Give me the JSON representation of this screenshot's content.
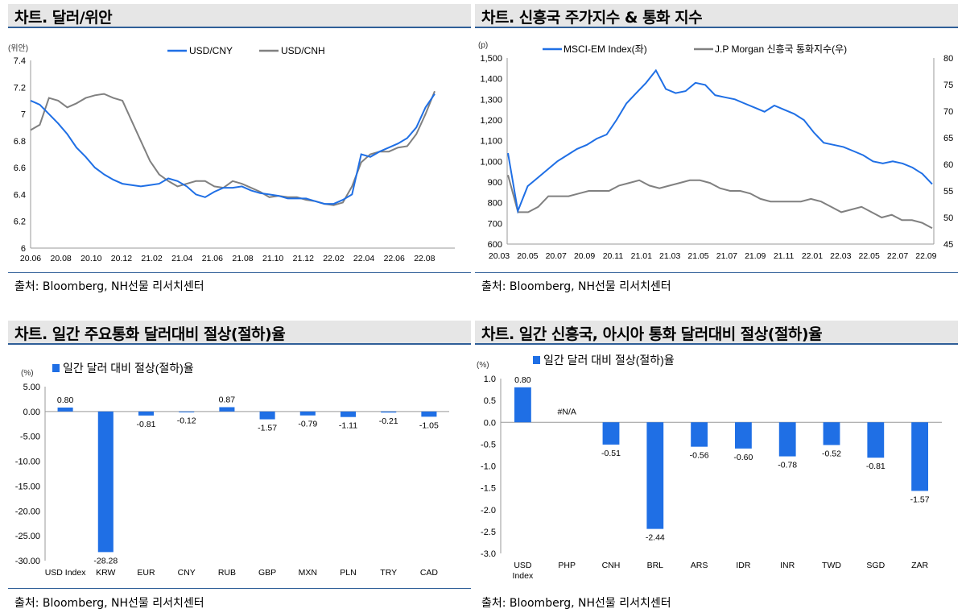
{
  "source_note": "출처: Bloomberg, NH선물 리서치센터",
  "charts": [
    {
      "title": "차트. 달러/위안",
      "unit": "(위안)",
      "type": "line",
      "series": [
        {
          "name": "USD/CNY",
          "color": "#1f6fe5"
        },
        {
          "name": "USD/CNH",
          "color": "#808080"
        }
      ],
      "xticks": [
        "20.06",
        "20.08",
        "20.10",
        "20.12",
        "21.02",
        "21.04",
        "21.06",
        "21.08",
        "21.10",
        "21.12",
        "22.02",
        "22.04",
        "22.06",
        "22.08"
      ],
      "yticks": [
        "6",
        "6.2",
        "6.4",
        "6.6",
        "6.8",
        "7",
        "7.2",
        "7.4"
      ],
      "ylim": [
        6,
        7.4
      ],
      "cny": [
        7.1,
        7.07,
        7.0,
        6.93,
        6.85,
        6.75,
        6.68,
        6.6,
        6.55,
        6.51,
        6.48,
        6.47,
        6.46,
        6.47,
        6.48,
        6.52,
        6.5,
        6.46,
        6.4,
        6.38,
        6.42,
        6.45,
        6.45,
        6.46,
        6.43,
        6.41,
        6.4,
        6.39,
        6.37,
        6.37,
        6.37,
        6.35,
        6.33,
        6.33,
        6.36,
        6.4,
        6.7,
        6.68,
        6.72,
        6.75,
        6.78,
        6.82,
        6.9,
        7.05,
        7.15
      ],
      "cnh": [
        6.88,
        6.92,
        7.12,
        7.1,
        7.05,
        7.08,
        7.12,
        7.14,
        7.15,
        7.12,
        7.1,
        6.95,
        6.8,
        6.65,
        6.55,
        6.5,
        6.46,
        6.48,
        6.5,
        6.5,
        6.46,
        6.45,
        6.5,
        6.48,
        6.45,
        6.42,
        6.38,
        6.39,
        6.38,
        6.38,
        6.36,
        6.35,
        6.33,
        6.32,
        6.34,
        6.46,
        6.64,
        6.7,
        6.72,
        6.72,
        6.75,
        6.76,
        6.85,
        7.0,
        7.17
      ]
    },
    {
      "title": "차트. 신흥국 주가지수 & 통화 지수",
      "unit": "(p)",
      "type": "line",
      "series": [
        {
          "name": "MSCI-EM Index(좌)",
          "color": "#1f6fe5"
        },
        {
          "name": "J.P Morgan 신흥국 통화지수(우)",
          "color": "#808080"
        }
      ],
      "xticks": [
        "20.03",
        "20.05",
        "20.07",
        "20.09",
        "20.11",
        "21.01",
        "21.03",
        "21.05",
        "21.07",
        "21.09",
        "21.11",
        "22.01",
        "22.03",
        "22.05",
        "22.07",
        "22.09"
      ],
      "yticks_left": [
        "600",
        "700",
        "800",
        "900",
        "1,000",
        "1,100",
        "1,200",
        "1,300",
        "1,400",
        "1,500"
      ],
      "yticks_right": [
        "45",
        "50",
        "55",
        "60",
        "65",
        "70",
        "75",
        "80"
      ],
      "ylim_left": [
        600,
        1500
      ],
      "ylim_right": [
        45,
        80
      ],
      "msci": [
        1040,
        760,
        880,
        920,
        960,
        1000,
        1030,
        1060,
        1080,
        1110,
        1130,
        1200,
        1280,
        1330,
        1380,
        1440,
        1350,
        1330,
        1340,
        1380,
        1370,
        1320,
        1310,
        1300,
        1280,
        1260,
        1240,
        1270,
        1250,
        1230,
        1200,
        1140,
        1090,
        1080,
        1070,
        1050,
        1030,
        1000,
        990,
        1000,
        990,
        970,
        940,
        890
      ],
      "jpm": [
        58,
        51,
        51,
        52,
        54,
        54,
        54,
        54.5,
        55,
        55,
        55,
        56,
        56.5,
        57,
        56,
        55.5,
        56,
        56.5,
        57,
        57,
        56.5,
        55.5,
        55,
        55,
        54.5,
        53.5,
        53,
        53,
        53,
        53,
        53.5,
        53,
        52,
        51,
        51.5,
        52,
        51,
        50,
        50.5,
        49.5,
        49.5,
        49,
        48
      ]
    },
    {
      "title": "차트. 일간 주요통화 달러대비 절상(절하)율",
      "unit": "(%)",
      "type": "bar",
      "legend": "일간 달러 대비 절상(절하)율",
      "categories": [
        "USD Index",
        "KRW",
        "EUR",
        "CNY",
        "RUB",
        "GBP",
        "MXN",
        "PLN",
        "TRY",
        "CAD"
      ],
      "values": [
        0.8,
        -28.28,
        -0.81,
        -0.12,
        0.87,
        -1.57,
        -0.79,
        -1.11,
        -0.21,
        -1.05
      ],
      "labels": [
        "0.80",
        "-28.28",
        "-0.81",
        "-0.12",
        "0.87",
        "-1.57",
        "-0.79",
        "-1.11",
        "-0.21",
        "-1.05"
      ],
      "yticks": [
        "5.00",
        "0.00",
        "-5.00",
        "-10.00",
        "-15.00",
        "-20.00",
        "-25.00",
        "-30.00"
      ],
      "ylim": [
        -30,
        5
      ]
    },
    {
      "title": "차트. 일간 신흥국, 아시아 통화 달러대비 절상(절하)율",
      "unit": "(%)",
      "type": "bar",
      "legend": "일간 달러 대비 절상(절하)율",
      "categories": [
        "USD\nIndex",
        "PHP",
        "CNH",
        "BRL",
        "ARS",
        "IDR",
        "INR",
        "TWD",
        "SGD",
        "ZAR"
      ],
      "values": [
        0.8,
        null,
        -0.51,
        -2.44,
        -0.56,
        -0.6,
        -0.78,
        -0.52,
        -0.81,
        -1.57
      ],
      "labels": [
        "0.80",
        "#N/A",
        "-0.51",
        "-2.44",
        "-0.56",
        "-0.60",
        "-0.78",
        "-0.52",
        "-0.81",
        "-1.57"
      ],
      "yticks": [
        "1.0",
        "0.5",
        "0.0",
        "-0.5",
        "-1.0",
        "-1.5",
        "-2.0",
        "-2.5",
        "-3.0"
      ],
      "ylim": [
        -3,
        1
      ]
    }
  ]
}
